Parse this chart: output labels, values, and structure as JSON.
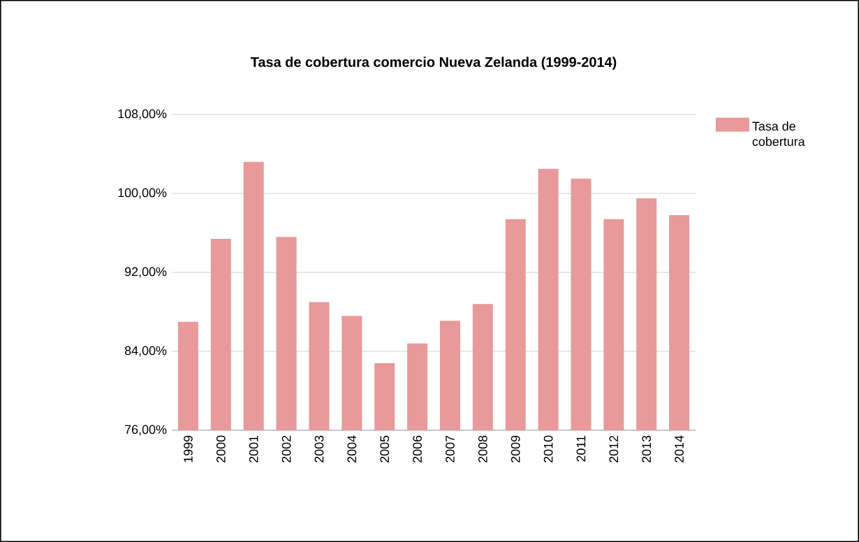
{
  "chart_data": {
    "type": "bar",
    "title": "Tasa de cobertura comercio Nueva Zelanda (1999-2014)",
    "categories": [
      "1999",
      "2000",
      "2001",
      "2002",
      "2003",
      "2004",
      "2005",
      "2006",
      "2007",
      "2008",
      "2009",
      "2010",
      "2011",
      "2012",
      "2013",
      "2014"
    ],
    "series": [
      {
        "name": "Tasa de cobertura",
        "color": "#e89999",
        "values": [
          87.0,
          95.4,
          103.2,
          95.6,
          89.0,
          87.6,
          82.8,
          84.8,
          87.1,
          88.8,
          97.4,
          102.5,
          101.5,
          97.4,
          99.5,
          97.8
        ]
      }
    ],
    "ylim": [
      76,
      108
    ],
    "yticks": [
      {
        "value": 76,
        "label": "76,00%"
      },
      {
        "value": 84,
        "label": "84,00%"
      },
      {
        "value": 92,
        "label": "92,00%"
      },
      {
        "value": 100,
        "label": "100,00%"
      },
      {
        "value": 108,
        "label": "108,00%"
      }
    ],
    "grid": "y",
    "legend": "right"
  }
}
